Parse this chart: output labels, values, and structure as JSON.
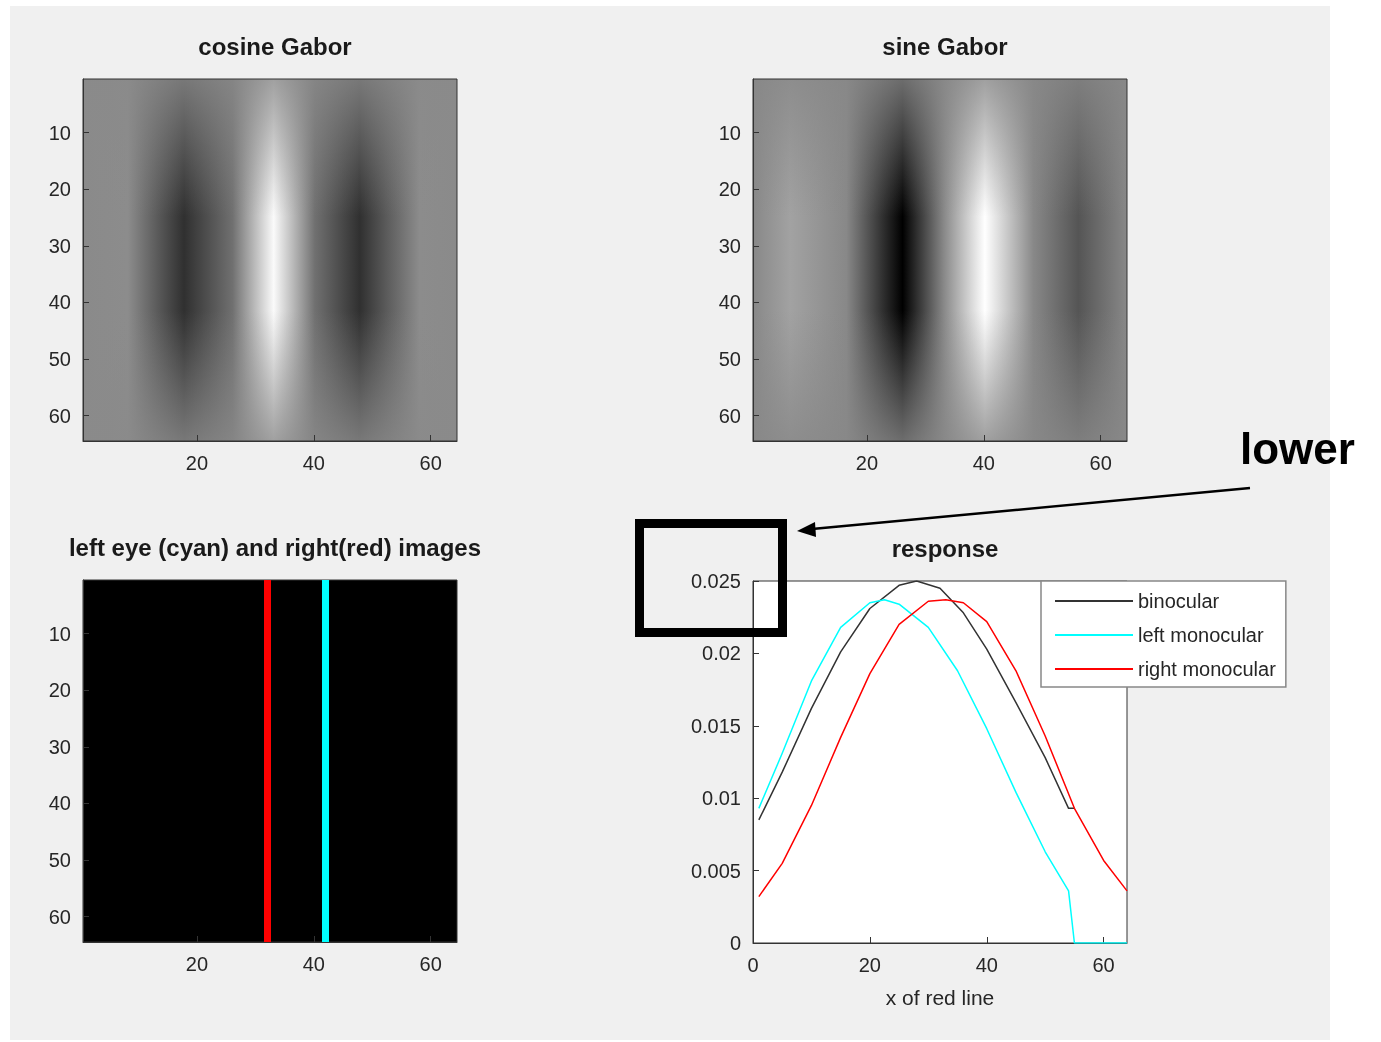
{
  "chart_data": [
    {
      "type": "heatmap",
      "title": "cosine Gabor",
      "xlim": [
        0.5,
        64.5
      ],
      "ylim": [
        64.5,
        0.5
      ],
      "xticks": [
        20,
        40,
        60
      ],
      "yticks": [
        10,
        20,
        30,
        40,
        50,
        60
      ]
    },
    {
      "type": "heatmap",
      "title": "sine Gabor",
      "xlim": [
        0.5,
        64.5
      ],
      "ylim": [
        64.5,
        0.5
      ],
      "xticks": [
        20,
        40,
        60
      ],
      "yticks": [
        10,
        20,
        30,
        40,
        50,
        60
      ]
    },
    {
      "type": "heatmap",
      "title": "left eye (cyan) and right(red) images",
      "xlim": [
        0.5,
        64.5
      ],
      "ylim": [
        64.5,
        0.5
      ],
      "xticks": [
        20,
        40,
        60
      ],
      "yticks": [
        10,
        20,
        30,
        40,
        50,
        60
      ],
      "ref_lines": [
        {
          "axis": "x",
          "value": 32,
          "color": "#ff0000"
        },
        {
          "axis": "x",
          "value": 42,
          "color": "#00ffff"
        }
      ]
    },
    {
      "type": "line",
      "title": "response",
      "xlabel": "x of red line",
      "xlim": [
        0,
        64
      ],
      "ylim": [
        0,
        0.025
      ],
      "xticks": [
        0,
        20,
        40,
        60
      ],
      "yticks": [
        0,
        0.005,
        0.01,
        0.015,
        0.02,
        0.025
      ],
      "legend": "top right",
      "annotations": [
        "lower"
      ],
      "series": [
        {
          "name": "binocular",
          "color": "#333333",
          "x": [
            1,
            5,
            10,
            15,
            20,
            25,
            28,
            32,
            36,
            40,
            45,
            50,
            54,
            55
          ],
          "values": [
            0.0085,
            0.0118,
            0.0162,
            0.0201,
            0.0231,
            0.0247,
            0.025,
            0.0245,
            0.0228,
            0.0203,
            0.0166,
            0.0128,
            0.0093,
            0.0093
          ]
        },
        {
          "name": "left monocular",
          "color": "#00ffff",
          "x": [
            1,
            5,
            10,
            15,
            20,
            22.5,
            25,
            30,
            35,
            40,
            45,
            50,
            54,
            55,
            60,
            64
          ],
          "values": [
            0.0093,
            0.0131,
            0.0181,
            0.0218,
            0.0235,
            0.0237,
            0.0234,
            0.0218,
            0.0188,
            0.0148,
            0.0104,
            0.0063,
            0.0036,
            0,
            0,
            0
          ]
        },
        {
          "name": "right monocular",
          "color": "#ff0000",
          "x": [
            1,
            5,
            10,
            15,
            20,
            25,
            30,
            33,
            36,
            40,
            45,
            50,
            55,
            60,
            64
          ],
          "values": [
            0.0032,
            0.0055,
            0.0095,
            0.0142,
            0.0186,
            0.022,
            0.0236,
            0.0237,
            0.0235,
            0.0222,
            0.0188,
            0.0143,
            0.0093,
            0.0057,
            0.0036
          ]
        }
      ]
    }
  ]
}
